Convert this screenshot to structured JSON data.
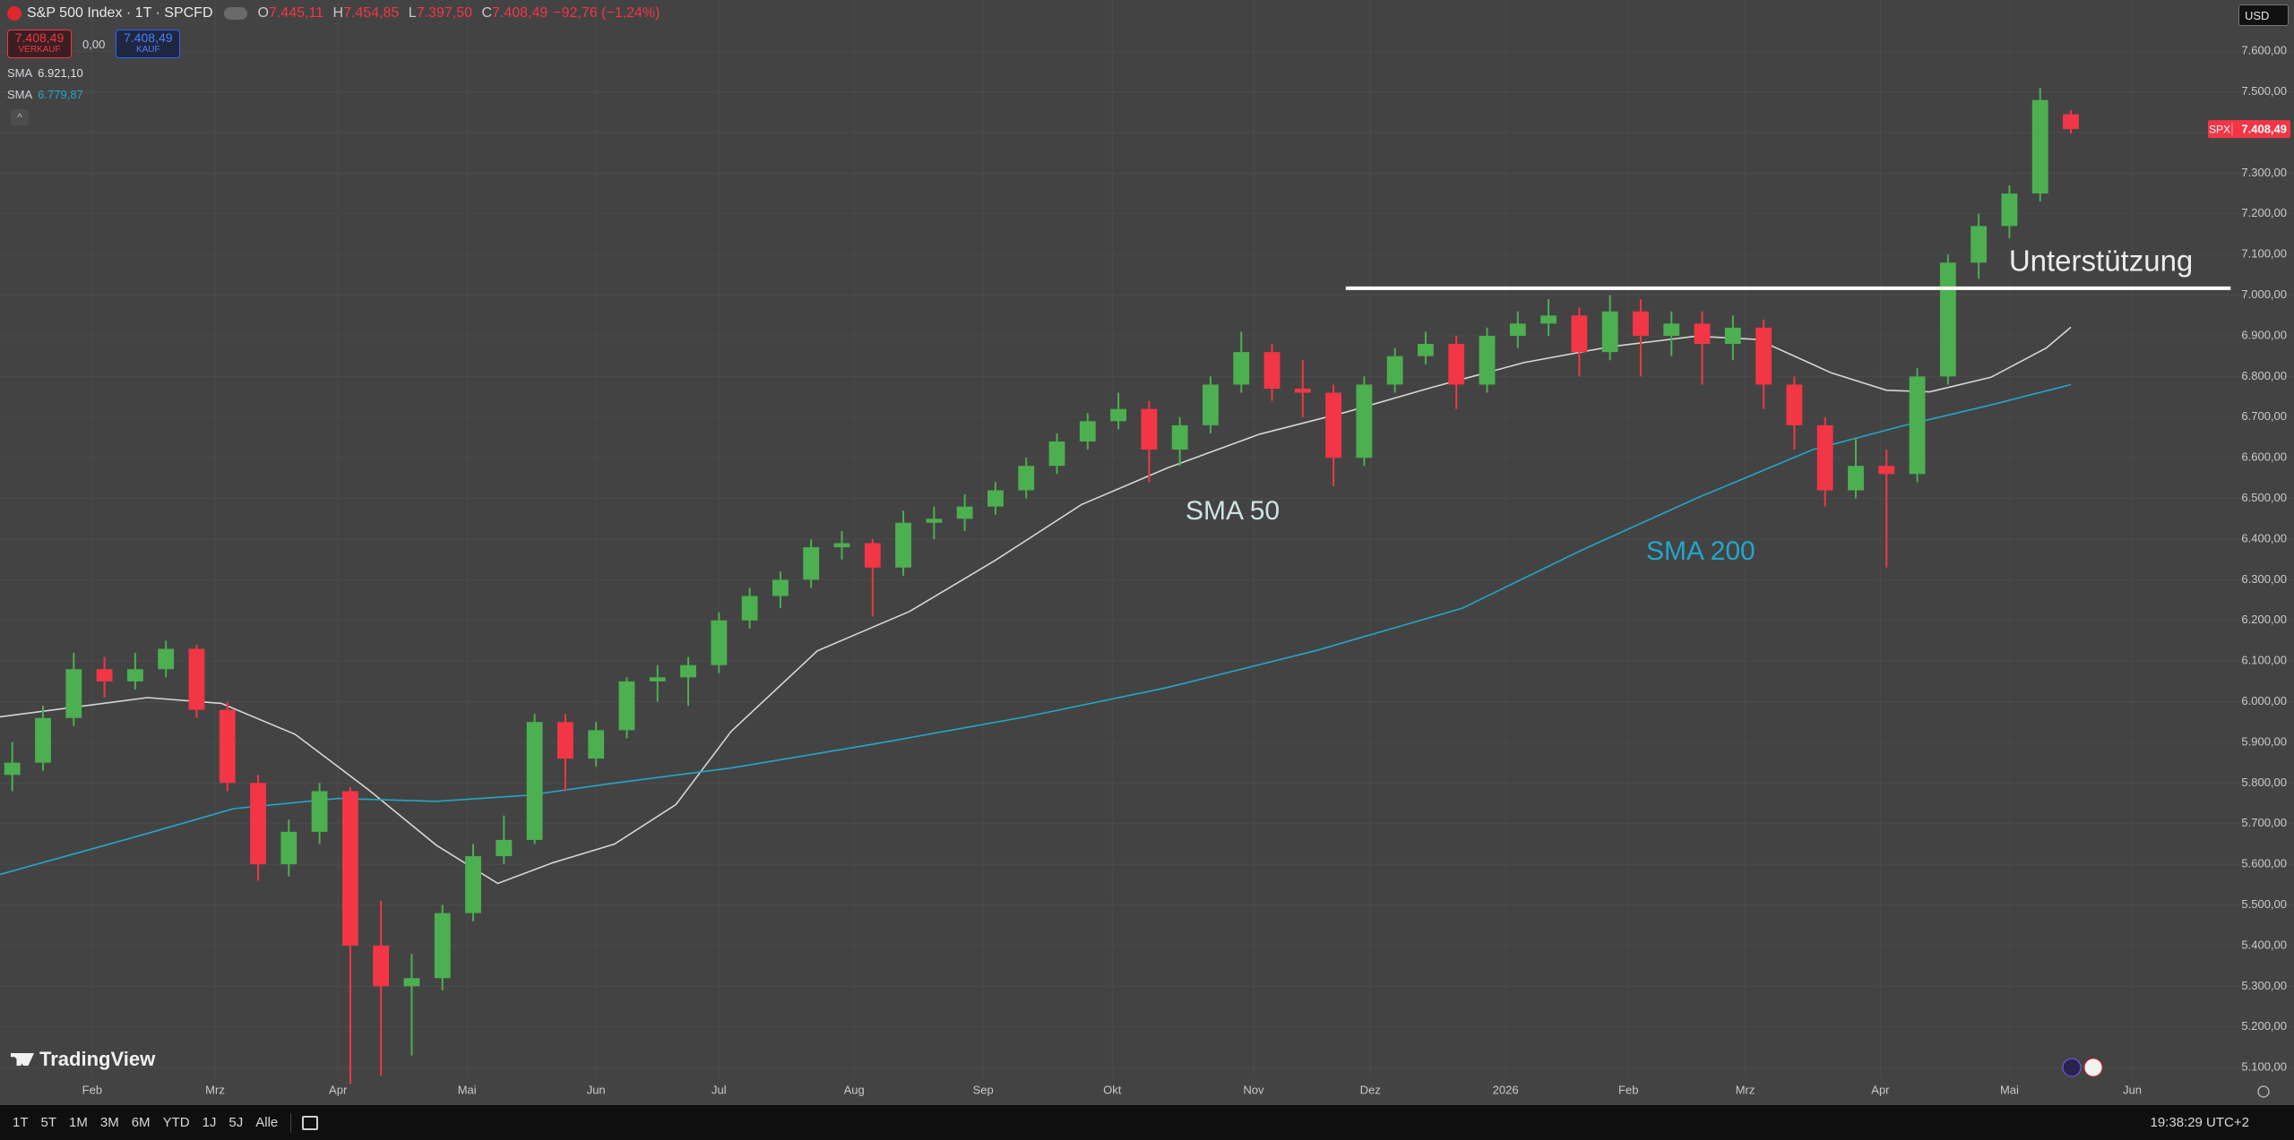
{
  "header": {
    "title": "S&P 500 Index · 1T · SPCFD",
    "ohlc": [
      {
        "key": "O",
        "value": "7.445,11"
      },
      {
        "key": "H",
        "value": "7.454,85"
      },
      {
        "key": "L",
        "value": "7.397,50"
      },
      {
        "key": "C",
        "value": "7.408,49"
      }
    ],
    "change": "−92,76 (−1,24%)",
    "sell": {
      "price": "7.408,49",
      "label": "VERKAUF"
    },
    "spread": "0,00",
    "buy": {
      "price": "7.408,49",
      "label": "KAUF"
    },
    "indicators": [
      {
        "name": "SMA",
        "value": "6.921,10"
      },
      {
        "name": "SMA",
        "value": "6.779,87"
      }
    ],
    "currency": "USD"
  },
  "chart_data": {
    "type": "candlestick",
    "xlim": [
      0,
      358
    ],
    "ylim": [
      5010,
      7726
    ],
    "grid": true,
    "xticks": [
      {
        "value": 15,
        "label": "Feb"
      },
      {
        "value": 35,
        "label": "Mrz"
      },
      {
        "value": 55,
        "label": "Apr"
      },
      {
        "value": 76,
        "label": "Mai"
      },
      {
        "value": 97,
        "label": "Jun"
      },
      {
        "value": 117,
        "label": "Jul"
      },
      {
        "value": 139,
        "label": "Aug"
      },
      {
        "value": 160,
        "label": "Sep"
      },
      {
        "value": 181,
        "label": "Okt"
      },
      {
        "value": 204,
        "label": "Nov"
      },
      {
        "value": 223,
        "label": "Dez"
      },
      {
        "value": 245,
        "label": "2026"
      },
      {
        "value": 265,
        "label": "Feb"
      },
      {
        "value": 284,
        "label": "Mrz"
      },
      {
        "value": 306,
        "label": "Apr"
      },
      {
        "value": 327,
        "label": "Mai"
      },
      {
        "value": 347,
        "label": "Jun"
      }
    ],
    "yticks": [
      {
        "value": 5100,
        "label": "5.100,00"
      },
      {
        "value": 5200,
        "label": "5.200,00"
      },
      {
        "value": 5300,
        "label": "5.300,00"
      },
      {
        "value": 5400,
        "label": "5.400,00"
      },
      {
        "value": 5500,
        "label": "5.500,00"
      },
      {
        "value": 5600,
        "label": "5.600,00"
      },
      {
        "value": 5700,
        "label": "5.700,00"
      },
      {
        "value": 5800,
        "label": "5.800,00"
      },
      {
        "value": 5900,
        "label": "5.900,00"
      },
      {
        "value": 6000,
        "label": "6.000,00"
      },
      {
        "value": 6100,
        "label": "6.100,00"
      },
      {
        "value": 6200,
        "label": "6.200,00"
      },
      {
        "value": 6300,
        "label": "6.300,00"
      },
      {
        "value": 6400,
        "label": "6.400,00"
      },
      {
        "value": 6500,
        "label": "6.500,00"
      },
      {
        "value": 6600,
        "label": "6.600,00"
      },
      {
        "value": 6700,
        "label": "6.700,00"
      },
      {
        "value": 6800,
        "label": "6.800,00"
      },
      {
        "value": 6900,
        "label": "6.900,00"
      },
      {
        "value": 7000,
        "label": "7.000,00"
      },
      {
        "value": 7100,
        "label": "7.100,00"
      },
      {
        "value": 7200,
        "label": "7.200,00"
      },
      {
        "value": 7300,
        "label": "7.300,00"
      },
      {
        "value": 7400,
        "label": "7.400,00"
      },
      {
        "value": 7500,
        "label": "7.500,00"
      },
      {
        "value": 7600,
        "label": "7.600,00"
      }
    ],
    "series": [
      {
        "name": "SPX",
        "type": "candlestick",
        "up_color": "#4caf50",
        "down_color": "#f23645",
        "x": [
          2,
          7,
          12,
          17,
          22,
          27,
          32,
          37,
          42,
          47,
          52,
          57,
          62,
          67,
          72,
          77,
          82,
          87,
          92,
          97,
          102,
          107,
          112,
          117,
          122,
          127,
          132,
          137,
          142,
          147,
          152,
          157,
          162,
          167,
          172,
          177,
          182,
          187,
          192,
          197,
          202,
          207,
          212,
          217,
          222,
          227,
          232,
          237,
          242,
          247,
          252,
          257,
          262,
          267,
          272,
          277,
          282,
          287,
          292,
          297,
          302,
          307,
          312,
          317,
          322,
          327,
          332,
          337
        ],
        "open": [
          5820,
          5850,
          5960,
          6080,
          6050,
          6080,
          6130,
          5980,
          5800,
          5600,
          5680,
          5780,
          5400,
          5300,
          5320,
          5480,
          5620,
          5660,
          5950,
          5860,
          5930,
          6050,
          6060,
          6090,
          6200,
          6260,
          6300,
          6380,
          6390,
          6330,
          6440,
          6450,
          6480,
          6520,
          6580,
          6640,
          6690,
          6720,
          6620,
          6680,
          6780,
          6860,
          6770,
          6760,
          6600,
          6780,
          6850,
          6880,
          6780,
          6900,
          6930,
          6950,
          6860,
          6960,
          6900,
          6930,
          6880,
          6920,
          6780,
          6680,
          6520,
          6580,
          6560,
          6800,
          7080,
          7170,
          7250,
          7445.11
        ],
        "high": [
          5900,
          5990,
          6120,
          6110,
          6120,
          6150,
          6140,
          6000,
          5820,
          5710,
          5800,
          5790,
          5510,
          5380,
          5500,
          5650,
          5720,
          5970,
          5970,
          5950,
          6060,
          6090,
          6110,
          6220,
          6280,
          6320,
          6400,
          6420,
          6400,
          6470,
          6480,
          6510,
          6540,
          6600,
          6660,
          6710,
          6760,
          6740,
          6700,
          6800,
          6910,
          6880,
          6840,
          6780,
          6800,
          6870,
          6910,
          6900,
          6920,
          6960,
          6990,
          6970,
          7000,
          6990,
          6960,
          6960,
          6950,
          6940,
          6800,
          6700,
          6650,
          6620,
          6820,
          7100,
          7200,
          7270,
          7510,
          7454.85
        ],
        "low": [
          5780,
          5830,
          5940,
          6010,
          6030,
          6060,
          5960,
          5780,
          5560,
          5570,
          5650,
          5060,
          5080,
          5130,
          5290,
          5460,
          5600,
          5650,
          5780,
          5840,
          5910,
          6000,
          5990,
          6070,
          6180,
          6230,
          6280,
          6350,
          6210,
          6310,
          6400,
          6420,
          6460,
          6500,
          6560,
          6620,
          6670,
          6540,
          6580,
          6660,
          6760,
          6740,
          6700,
          6530,
          6580,
          6760,
          6830,
          6720,
          6760,
          6870,
          6900,
          6800,
          6840,
          6800,
          6850,
          6780,
          6840,
          6720,
          6620,
          6480,
          6500,
          6330,
          6540,
          6780,
          7040,
          7140,
          7230,
          7397.5
        ],
        "close": [
          5850,
          5960,
          6080,
          6050,
          6080,
          6130,
          5980,
          5800,
          5600,
          5680,
          5780,
          5400,
          5300,
          5320,
          5480,
          5620,
          5660,
          5950,
          5860,
          5930,
          6050,
          6060,
          6090,
          6200,
          6260,
          6300,
          6380,
          6390,
          6330,
          6440,
          6450,
          6480,
          6520,
          6580,
          6640,
          6690,
          6720,
          6620,
          6680,
          6780,
          6860,
          6770,
          6760,
          6600,
          6780,
          6850,
          6880,
          6780,
          6900,
          6930,
          6950,
          6860,
          6960,
          6900,
          6930,
          6880,
          6920,
          6780,
          6680,
          6520,
          6580,
          6560,
          6800,
          7080,
          7170,
          7250,
          7480,
          7408.49
        ]
      },
      {
        "name": "SMA 50",
        "type": "line",
        "color": "#d6d6d6",
        "x": [
          0,
          24,
          36,
          48,
          60,
          71,
          81,
          90,
          100,
          110,
          119,
          133,
          148,
          162,
          176,
          190,
          205,
          219,
          233,
          248,
          262,
          276,
          286,
          298,
          307,
          314,
          324,
          333,
          337
        ],
        "values": [
          5963,
          6010,
          5996,
          5920,
          5783,
          5647,
          5553,
          5604,
          5650,
          5747,
          5927,
          6125,
          6222,
          6348,
          6485,
          6575,
          6658,
          6712,
          6773,
          6834,
          6873,
          6899,
          6891,
          6809,
          6766,
          6762,
          6798,
          6870,
          6921.1
        ]
      },
      {
        "name": "SMA 200",
        "type": "line",
        "color": "#22a7c9",
        "x": [
          0,
          24,
          38,
          55,
          71,
          86,
          100,
          119,
          143,
          167,
          190,
          214,
          238,
          257,
          276,
          295,
          310,
          324,
          337
        ],
        "values": [
          5575,
          5676,
          5737,
          5762,
          5755,
          5770,
          5800,
          5837,
          5898,
          5963,
          6035,
          6125,
          6230,
          6370,
          6500,
          6620,
          6680,
          6730,
          6779.87
        ]
      }
    ],
    "annotations": [
      {
        "text": "Unterstützung",
        "y": 7017,
        "x": [
          219,
          363
        ],
        "color": "#ffffff"
      }
    ],
    "last_price": {
      "value": 7408.49,
      "label": "7.408,49"
    }
  },
  "toolbar": {
    "ranges": [
      "1T",
      "5T",
      "1M",
      "3M",
      "6M",
      "YTD",
      "1J",
      "5J",
      "Alle"
    ],
    "time": "19:38:29 UTC+2"
  },
  "branding": "TradingView"
}
